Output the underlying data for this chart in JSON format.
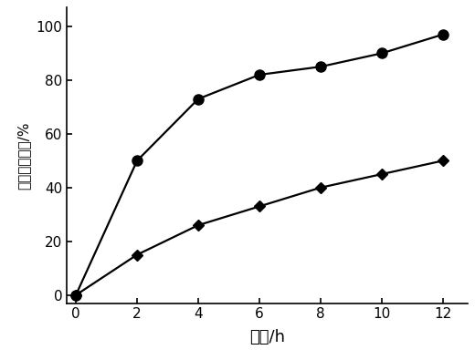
{
  "x": [
    0,
    2,
    4,
    6,
    8,
    10,
    12
  ],
  "series1_y": [
    0,
    50,
    73,
    82,
    85,
    90,
    97
  ],
  "series2_y": [
    0,
    15,
    26,
    33,
    40,
    45,
    50
  ],
  "xlabel": "时间/h",
  "ylabel": "确酸盐降解率/%",
  "xlim": [
    -0.3,
    12.8
  ],
  "ylim": [
    -3,
    107
  ],
  "xticks": [
    0,
    2,
    4,
    6,
    8,
    10,
    12
  ],
  "yticks": [
    0,
    20,
    40,
    60,
    80,
    100
  ],
  "line_color": "#000000",
  "bg_color": "#ffffff",
  "marker1": "o",
  "marker2": "D",
  "markersize1": 8,
  "markersize2": 6,
  "linewidth": 1.6,
  "xlabel_fontsize": 13,
  "ylabel_fontsize": 11,
  "tick_fontsize": 11
}
